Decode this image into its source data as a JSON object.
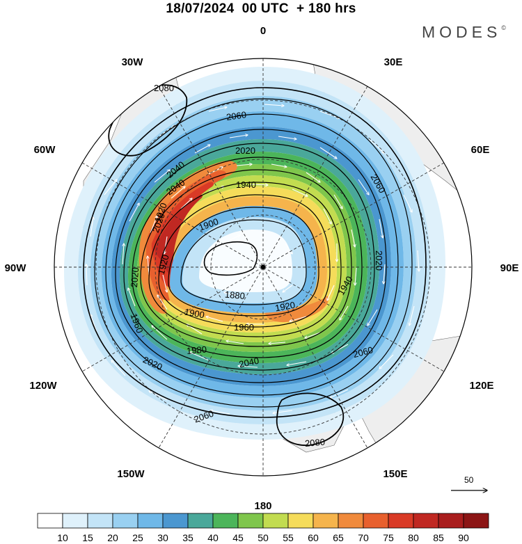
{
  "title": "18/07/2024  00 UTC  + 180 hrs",
  "brand": "MODES",
  "brand_mark": "©",
  "map": {
    "projection": "polar-stereographic-south",
    "longitude_labels": {
      "top": "0",
      "top_right": "30E",
      "right_upper": "60E",
      "right": "90E",
      "right_lower": "120E",
      "bottom_right": "150E",
      "bottom": "180",
      "bottom_left": "150W",
      "left_lower": "120W",
      "left": "90W",
      "left_upper": "60W",
      "top_left": "30W"
    },
    "contour_labels": [
      "2080",
      "2060",
      "2020",
      "2040",
      "1940",
      "1900",
      "1880",
      "1900",
      "1920",
      "1940",
      "2020",
      "2020",
      "1920",
      "1960",
      "1980",
      "2020",
      "2040",
      "2060",
      "2060",
      "2040",
      "2020",
      "1960",
      "1920",
      "2060",
      "2080"
    ],
    "reference_vector": "50",
    "colors": {
      "land": "#eeeeee",
      "contour": "#000000",
      "grid": "#333333"
    }
  },
  "colorbar": {
    "labels": [
      "10",
      "15",
      "20",
      "25",
      "30",
      "35",
      "40",
      "45",
      "50",
      "55",
      "60",
      "65",
      "70",
      "75",
      "80",
      "85",
      "90"
    ],
    "colors": [
      "#ffffff",
      "#dff1fb",
      "#c3e4f7",
      "#99d0f1",
      "#6fb8e8",
      "#4b97d0",
      "#4aa89a",
      "#4cb55a",
      "#7fc64c",
      "#c2dc50",
      "#f5dc5a",
      "#f5b44c",
      "#f08a3c",
      "#e8602e",
      "#d93a26",
      "#c02822",
      "#a91d1d",
      "#8c1515"
    ]
  }
}
